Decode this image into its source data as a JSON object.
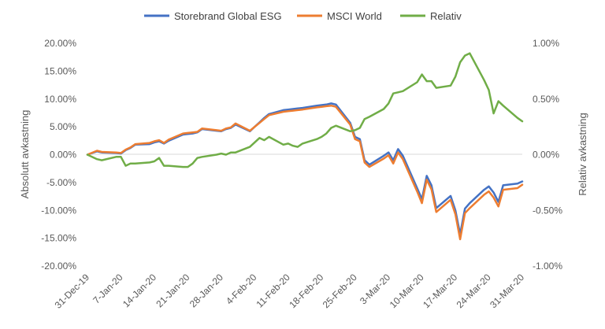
{
  "chart_data": {
    "type": "line",
    "title": "",
    "x_tick_labels": [
      "31-Dec-19",
      "7-Jan-20",
      "14-Jan-20",
      "21-Jan-20",
      "28-Jan-20",
      "4-Feb-20",
      "11-Feb-20",
      "18-Feb-20",
      "25-Feb-20",
      "3-Mar-20",
      "10-Mar-20",
      "17-Mar-20",
      "24-Mar-20",
      "31-Mar-20"
    ],
    "x_range": [
      "31-Dec-19",
      "31-Mar-20"
    ],
    "ylabel_left": "Absolutt avkastning",
    "ylabel_right": "Relativ avkastning",
    "y_left_range": [
      -0.2,
      0.2
    ],
    "y_left_ticks": [
      "20.00%",
      "15.00%",
      "10.00%",
      "5.00%",
      "0.00%",
      "-5.00%",
      "-10.00%",
      "-15.00%",
      "-20.00%"
    ],
    "y_right_range": [
      -0.01,
      0.01
    ],
    "y_right_ticks": [
      "1.00%",
      "0.50%",
      "0.00%",
      "-0.50%",
      "-1.00%"
    ],
    "legend_position": "top",
    "series": [
      {
        "name": "Storebrand Global ESG",
        "axis": "left",
        "color": "#4472C4",
        "points": [
          [
            "31-Dec-19",
            0.0
          ],
          [
            "2-Jan-20",
            0.006
          ],
          [
            "3-Jan-20",
            0.004
          ],
          [
            "6-Jan-20",
            0.003
          ],
          [
            "7-Jan-20",
            0.002
          ],
          [
            "8-Jan-20",
            0.008
          ],
          [
            "9-Jan-20",
            0.012
          ],
          [
            "10-Jan-20",
            0.018
          ],
          [
            "13-Jan-20",
            0.019
          ],
          [
            "14-Jan-20",
            0.022
          ],
          [
            "15-Jan-20",
            0.024
          ],
          [
            "16-Jan-20",
            0.02
          ],
          [
            "17-Jan-20",
            0.025
          ],
          [
            "20-Jan-20",
            0.036
          ],
          [
            "21-Jan-20",
            0.037
          ],
          [
            "22-Jan-20",
            0.038
          ],
          [
            "23-Jan-20",
            0.04
          ],
          [
            "24-Jan-20",
            0.046
          ],
          [
            "27-Jan-20",
            0.043
          ],
          [
            "28-Jan-20",
            0.042
          ],
          [
            "29-Jan-20",
            0.046
          ],
          [
            "30-Jan-20",
            0.048
          ],
          [
            "31-Jan-20",
            0.054
          ],
          [
            "3-Feb-20",
            0.042
          ],
          [
            "4-Feb-20",
            0.05
          ],
          [
            "5-Feb-20",
            0.058
          ],
          [
            "6-Feb-20",
            0.066
          ],
          [
            "7-Feb-20",
            0.073
          ],
          [
            "10-Feb-20",
            0.08
          ],
          [
            "11-Feb-20",
            0.081
          ],
          [
            "12-Feb-20",
            0.082
          ],
          [
            "13-Feb-20",
            0.083
          ],
          [
            "14-Feb-20",
            0.084
          ],
          [
            "17-Feb-20",
            0.088
          ],
          [
            "18-Feb-20",
            0.089
          ],
          [
            "19-Feb-20",
            0.09
          ],
          [
            "20-Feb-20",
            0.092
          ],
          [
            "21-Feb-20",
            0.09
          ],
          [
            "24-Feb-20",
            0.057
          ],
          [
            "25-Feb-20",
            0.032
          ],
          [
            "26-Feb-20",
            0.028
          ],
          [
            "27-Feb-20",
            -0.01
          ],
          [
            "28-Feb-20",
            -0.018
          ],
          [
            "2-Mar-20",
            -0.002
          ],
          [
            "3-Mar-20",
            0.004
          ],
          [
            "4-Mar-20",
            -0.01
          ],
          [
            "5-Mar-20",
            0.01
          ],
          [
            "6-Mar-20",
            -0.002
          ],
          [
            "9-Mar-20",
            -0.06
          ],
          [
            "10-Mar-20",
            -0.08
          ],
          [
            "11-Mar-20",
            -0.038
          ],
          [
            "12-Mar-20",
            -0.055
          ],
          [
            "13-Mar-20",
            -0.096
          ],
          [
            "16-Mar-20",
            -0.074
          ],
          [
            "17-Mar-20",
            -0.1
          ],
          [
            "18-Mar-20",
            -0.143
          ],
          [
            "19-Mar-20",
            -0.097
          ],
          [
            "20-Mar-20",
            -0.087
          ],
          [
            "23-Mar-20",
            -0.063
          ],
          [
            "24-Mar-20",
            -0.057
          ],
          [
            "25-Mar-20",
            -0.068
          ],
          [
            "26-Mar-20",
            -0.085
          ],
          [
            "27-Mar-20",
            -0.055
          ],
          [
            "30-Mar-20",
            -0.052
          ],
          [
            "31-Mar-20",
            -0.048
          ]
        ]
      },
      {
        "name": "MSCI World",
        "axis": "left",
        "color": "#ED7D31",
        "points": [
          [
            "31-Dec-19",
            0.0
          ],
          [
            "2-Jan-20",
            0.007
          ],
          [
            "3-Jan-20",
            0.005
          ],
          [
            "6-Jan-20",
            0.004
          ],
          [
            "7-Jan-20",
            0.003
          ],
          [
            "8-Jan-20",
            0.009
          ],
          [
            "9-Jan-20",
            0.013
          ],
          [
            "10-Jan-20",
            0.019
          ],
          [
            "13-Jan-20",
            0.021
          ],
          [
            "14-Jan-20",
            0.024
          ],
          [
            "15-Jan-20",
            0.026
          ],
          [
            "16-Jan-20",
            0.021
          ],
          [
            "17-Jan-20",
            0.027
          ],
          [
            "20-Jan-20",
            0.038
          ],
          [
            "21-Jan-20",
            0.039
          ],
          [
            "22-Jan-20",
            0.04
          ],
          [
            "23-Jan-20",
            0.041
          ],
          [
            "24-Jan-20",
            0.047
          ],
          [
            "27-Jan-20",
            0.044
          ],
          [
            "28-Jan-20",
            0.043
          ],
          [
            "29-Jan-20",
            0.047
          ],
          [
            "30-Jan-20",
            0.049
          ],
          [
            "31-Jan-20",
            0.056
          ],
          [
            "3-Feb-20",
            0.043
          ],
          [
            "4-Feb-20",
            0.05
          ],
          [
            "5-Feb-20",
            0.057
          ],
          [
            "6-Feb-20",
            0.064
          ],
          [
            "7-Feb-20",
            0.071
          ],
          [
            "10-Feb-20",
            0.077
          ],
          [
            "11-Feb-20",
            0.078
          ],
          [
            "12-Feb-20",
            0.079
          ],
          [
            "13-Feb-20",
            0.08
          ],
          [
            "14-Feb-20",
            0.081
          ],
          [
            "17-Feb-20",
            0.085
          ],
          [
            "18-Feb-20",
            0.086
          ],
          [
            "19-Feb-20",
            0.087
          ],
          [
            "20-Feb-20",
            0.088
          ],
          [
            "21-Feb-20",
            0.086
          ],
          [
            "24-Feb-20",
            0.054
          ],
          [
            "25-Feb-20",
            0.028
          ],
          [
            "26-Feb-20",
            0.024
          ],
          [
            "27-Feb-20",
            -0.014
          ],
          [
            "28-Feb-20",
            -0.022
          ],
          [
            "2-Mar-20",
            -0.007
          ],
          [
            "3-Mar-20",
            -0.001
          ],
          [
            "4-Mar-20",
            -0.016
          ],
          [
            "5-Mar-20",
            0.004
          ],
          [
            "6-Mar-20",
            -0.008
          ],
          [
            "9-Mar-20",
            -0.066
          ],
          [
            "10-Mar-20",
            -0.087
          ],
          [
            "11-Mar-20",
            -0.045
          ],
          [
            "12-Mar-20",
            -0.062
          ],
          [
            "13-Mar-20",
            -0.103
          ],
          [
            "16-Mar-20",
            -0.081
          ],
          [
            "17-Mar-20",
            -0.107
          ],
          [
            "18-Mar-20",
            -0.152
          ],
          [
            "19-Mar-20",
            -0.105
          ],
          [
            "20-Mar-20",
            -0.096
          ],
          [
            "23-Mar-20",
            -0.072
          ],
          [
            "24-Mar-20",
            -0.066
          ],
          [
            "25-Mar-20",
            -0.077
          ],
          [
            "26-Mar-20",
            -0.093
          ],
          [
            "27-Mar-20",
            -0.063
          ],
          [
            "30-Mar-20",
            -0.06
          ],
          [
            "31-Mar-20",
            -0.054
          ]
        ]
      },
      {
        "name": "Relativ",
        "axis": "right",
        "color": "#70AD47",
        "points": [
          [
            "31-Dec-19",
            0.0
          ],
          [
            "2-Jan-20",
            -0.0004
          ],
          [
            "3-Jan-20",
            -0.0005
          ],
          [
            "6-Jan-20",
            -0.0002
          ],
          [
            "7-Jan-20",
            -0.0002
          ],
          [
            "8-Jan-20",
            -0.001
          ],
          [
            "9-Jan-20",
            -0.0008
          ],
          [
            "10-Jan-20",
            -0.0008
          ],
          [
            "13-Jan-20",
            -0.0007
          ],
          [
            "14-Jan-20",
            -0.0006
          ],
          [
            "15-Jan-20",
            -0.0003
          ],
          [
            "16-Jan-20",
            -0.001
          ],
          [
            "17-Jan-20",
            -0.001
          ],
          [
            "20-Jan-20",
            -0.0011
          ],
          [
            "21-Jan-20",
            -0.0011
          ],
          [
            "22-Jan-20",
            -0.0008
          ],
          [
            "23-Jan-20",
            -0.0003
          ],
          [
            "24-Jan-20",
            -0.0002
          ],
          [
            "27-Jan-20",
            0.0
          ],
          [
            "28-Jan-20",
            0.0001
          ],
          [
            "29-Jan-20",
            0.0
          ],
          [
            "30-Jan-20",
            0.0002
          ],
          [
            "31-Jan-20",
            0.0002
          ],
          [
            "3-Feb-20",
            0.0007
          ],
          [
            "4-Feb-20",
            0.0011
          ],
          [
            "5-Feb-20",
            0.0015
          ],
          [
            "6-Feb-20",
            0.0013
          ],
          [
            "7-Feb-20",
            0.0016
          ],
          [
            "10-Feb-20",
            0.0009
          ],
          [
            "11-Feb-20",
            0.001
          ],
          [
            "12-Feb-20",
            0.0008
          ],
          [
            "13-Feb-20",
            0.0007
          ],
          [
            "14-Feb-20",
            0.001
          ],
          [
            "17-Feb-20",
            0.0014
          ],
          [
            "18-Feb-20",
            0.0016
          ],
          [
            "19-Feb-20",
            0.0019
          ],
          [
            "20-Feb-20",
            0.0024
          ],
          [
            "21-Feb-20",
            0.0026
          ],
          [
            "24-Feb-20",
            0.0021
          ],
          [
            "25-Feb-20",
            0.0022
          ],
          [
            "26-Feb-20",
            0.0024
          ],
          [
            "27-Feb-20",
            0.0032
          ],
          [
            "28-Feb-20",
            0.0034
          ],
          [
            "2-Mar-20",
            0.0041
          ],
          [
            "3-Mar-20",
            0.0046
          ],
          [
            "4-Mar-20",
            0.0055
          ],
          [
            "5-Mar-20",
            0.0056
          ],
          [
            "6-Mar-20",
            0.0057
          ],
          [
            "9-Mar-20",
            0.0065
          ],
          [
            "10-Mar-20",
            0.0072
          ],
          [
            "11-Mar-20",
            0.0066
          ],
          [
            "12-Mar-20",
            0.0066
          ],
          [
            "13-Mar-20",
            0.006
          ],
          [
            "16-Mar-20",
            0.0062
          ],
          [
            "17-Mar-20",
            0.007
          ],
          [
            "18-Mar-20",
            0.0083
          ],
          [
            "19-Mar-20",
            0.0089
          ],
          [
            "20-Mar-20",
            0.0091
          ],
          [
            "23-Mar-20",
            0.0067
          ],
          [
            "24-Mar-20",
            0.0058
          ],
          [
            "25-Mar-20",
            0.0037
          ],
          [
            "26-Mar-20",
            0.0048
          ],
          [
            "27-Mar-20",
            0.0044
          ],
          [
            "30-Mar-20",
            0.0033
          ],
          [
            "31-Mar-20",
            0.003
          ]
        ]
      }
    ]
  }
}
